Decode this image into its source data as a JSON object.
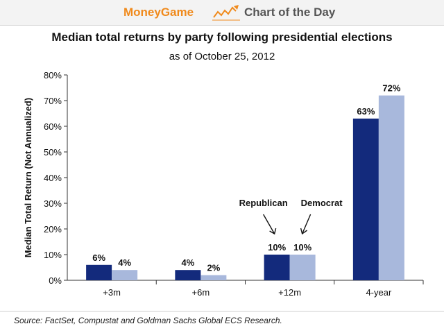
{
  "header": {
    "brand": "MoneyGame",
    "brand_icon": "rising-line-arrow-icon",
    "section": "Chart of the Day",
    "brand_color": "#f08a1c"
  },
  "chart_data": {
    "type": "bar",
    "title": "Median total returns by party following presidential elections",
    "subtitle": "as of October 25, 2012",
    "ylabel": "Median Total Return (Not Annualized)",
    "xlabel": "",
    "categories": [
      "+3m",
      "+6m",
      "+12m",
      "4-year"
    ],
    "ylim": [
      0,
      80
    ],
    "yticks": [
      "0%",
      "10%",
      "20%",
      "30%",
      "40%",
      "50%",
      "60%",
      "70%",
      "80%"
    ],
    "series": [
      {
        "name": "Republican",
        "color": "#132a7c",
        "values": [
          6,
          4,
          10,
          63
        ],
        "labels": [
          "6%",
          "4%",
          "10%",
          "63%"
        ]
      },
      {
        "name": "Democrat",
        "color": "#a8b8dc",
        "values": [
          4,
          2,
          10,
          72
        ],
        "labels": [
          "4%",
          "2%",
          "10%",
          "72%"
        ]
      }
    ],
    "grid": false,
    "legend": "annotations with arrows above +12m bars"
  },
  "footer": {
    "source": "Source: FactSet, Compustat and Goldman Sachs Global ECS Research."
  }
}
